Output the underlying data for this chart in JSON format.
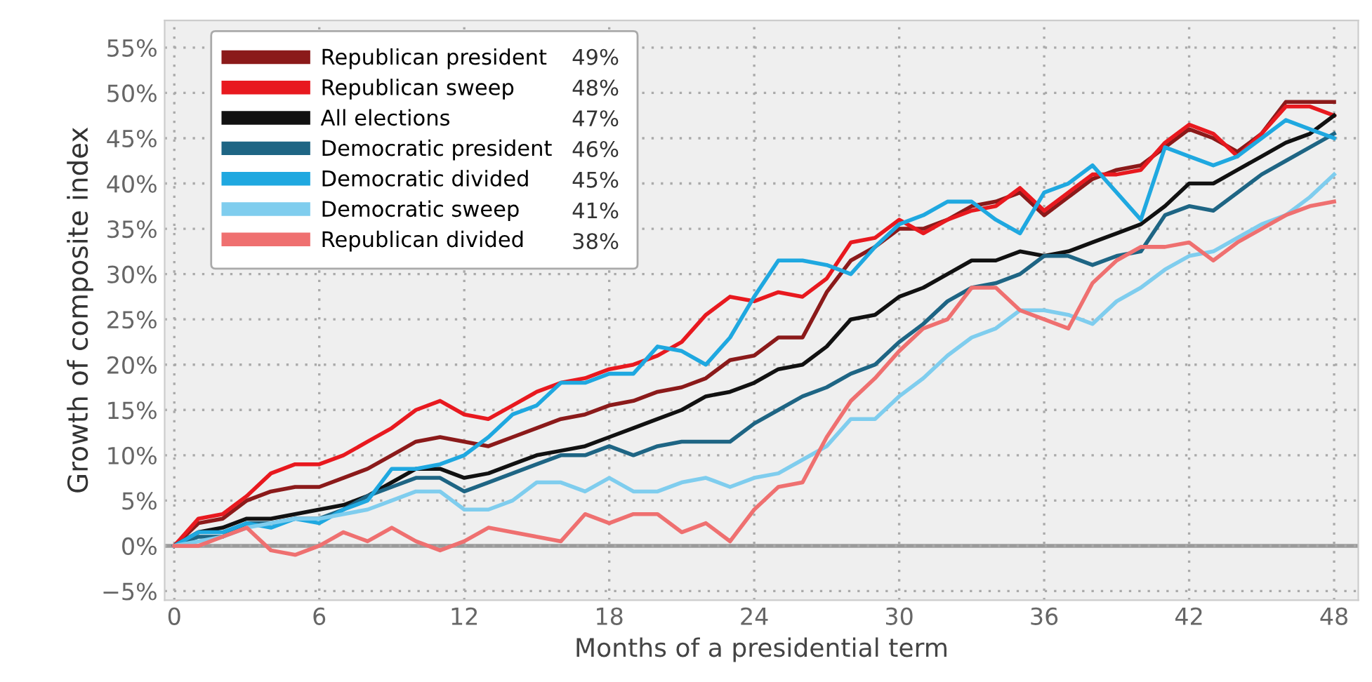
{
  "chart_data": {
    "type": "line",
    "xlabel": "Months of a presidential term",
    "ylabel": "Growth of composite index",
    "x": [
      0,
      1,
      2,
      3,
      4,
      5,
      6,
      7,
      8,
      9,
      10,
      11,
      12,
      13,
      14,
      15,
      16,
      17,
      18,
      19,
      20,
      21,
      22,
      23,
      24,
      25,
      26,
      27,
      28,
      29,
      30,
      31,
      32,
      33,
      34,
      35,
      36,
      37,
      38,
      39,
      40,
      41,
      42,
      43,
      44,
      45,
      46,
      47,
      48
    ],
    "xlim": [
      -0.4,
      49
    ],
    "xticks": [
      0,
      6,
      12,
      18,
      24,
      30,
      36,
      42,
      48
    ],
    "ylim": [
      -6,
      58
    ],
    "yticks": [
      {
        "value": -5,
        "label": "−5%"
      },
      {
        "value": 0,
        "label": "0%"
      },
      {
        "value": 5,
        "label": "5%"
      },
      {
        "value": 10,
        "label": "10%"
      },
      {
        "value": 15,
        "label": "15%"
      },
      {
        "value": 20,
        "label": "20%"
      },
      {
        "value": 25,
        "label": "25%"
      },
      {
        "value": 30,
        "label": "30%"
      },
      {
        "value": 35,
        "label": "35%"
      },
      {
        "value": 40,
        "label": "40%"
      },
      {
        "value": 45,
        "label": "45%"
      },
      {
        "value": 50,
        "label": "50%"
      },
      {
        "value": 55,
        "label": "55%"
      }
    ],
    "grid": true,
    "legend": "top left",
    "marker": "none",
    "line_style": "solid",
    "ref_lines": [
      {
        "axis": "y",
        "value": 0,
        "color": "#9a9a9a"
      }
    ],
    "annotations": [
      "49%",
      "48%",
      "47%",
      "46%",
      "45%",
      "41%",
      "38%"
    ],
    "series": [
      {
        "name": "Republican president",
        "color": "#8b1a1a",
        "values": [
          0,
          2.5,
          3,
          5,
          6,
          6.5,
          6.5,
          7.5,
          8.5,
          10,
          11.5,
          12,
          11.5,
          11,
          12,
          13,
          14,
          14.5,
          15.5,
          16,
          17,
          17.5,
          18.5,
          20.5,
          21,
          23,
          23,
          28,
          31.5,
          33,
          35,
          35,
          36,
          37.5,
          38,
          39,
          36.5,
          38.5,
          40.5,
          41.5,
          42,
          44,
          46,
          45,
          43.5,
          45.5,
          49,
          49,
          49
        ]
      },
      {
        "name": "Republican sweep",
        "color": "#e8191f",
        "values": [
          0,
          3,
          3.5,
          5.5,
          8,
          9,
          9,
          10,
          11.5,
          13,
          15,
          16,
          14.5,
          14,
          15.5,
          17,
          18,
          18.5,
          19.5,
          20,
          21,
          22.5,
          25.5,
          27.5,
          27,
          28,
          27.5,
          29.5,
          33.5,
          34,
          36,
          34.5,
          36,
          37,
          37.5,
          39.5,
          37,
          39,
          41,
          41,
          41.5,
          44.5,
          46.5,
          45.5,
          43,
          45.5,
          48.5,
          48.5,
          47.5
        ]
      },
      {
        "name": "All elections",
        "color": "#111111",
        "values": [
          0,
          1.5,
          2,
          3,
          3,
          3.5,
          4,
          4.5,
          5.5,
          7,
          8.5,
          8.5,
          7.5,
          8,
          9,
          10,
          10.5,
          11,
          12,
          13,
          14,
          15,
          16.5,
          17,
          18,
          19.5,
          20,
          22,
          25,
          25.5,
          27.5,
          28.5,
          30,
          31.5,
          31.5,
          32.5,
          32,
          32.5,
          33.5,
          34.5,
          35.5,
          37.5,
          40,
          40,
          41.5,
          43,
          44.5,
          45.5,
          47.5
        ]
      },
      {
        "name": "Democratic president",
        "color": "#1e6584",
        "values": [
          0,
          1,
          1,
          2.5,
          2.5,
          3,
          3,
          4,
          5.5,
          6.5,
          7.5,
          7.5,
          6,
          7,
          8,
          9,
          10,
          10,
          11,
          10,
          11,
          11.5,
          11.5,
          11.5,
          13.5,
          15,
          16.5,
          17.5,
          19,
          20,
          22.5,
          24.5,
          27,
          28.5,
          29,
          30,
          32,
          32,
          31,
          32,
          32.5,
          36.5,
          37.5,
          37,
          39,
          41,
          42.5,
          44,
          45.5
        ]
      },
      {
        "name": "Democratic divided",
        "color": "#1fa8e0",
        "values": [
          0,
          1.5,
          1.5,
          2.5,
          2,
          3,
          2.5,
          4,
          5,
          8.5,
          8.5,
          9,
          10,
          12,
          14.5,
          15.5,
          18,
          18,
          19,
          19,
          22,
          21.5,
          20,
          23,
          27.5,
          31.5,
          31.5,
          31,
          30,
          33,
          35.5,
          36.5,
          38,
          38,
          36,
          34.5,
          39,
          40,
          42,
          39,
          36,
          44,
          43,
          42,
          43,
          45,
          47,
          46,
          45
        ]
      },
      {
        "name": "Democratic sweep",
        "color": "#7fcdee",
        "values": [
          0,
          0.5,
          1,
          2,
          2.5,
          3,
          3,
          3.5,
          4,
          5,
          6,
          6,
          4,
          4,
          5,
          7,
          7,
          6,
          7.5,
          6,
          6,
          7,
          7.5,
          6.5,
          7.5,
          8,
          9.5,
          11,
          14,
          14,
          16.5,
          18.5,
          21,
          23,
          24,
          26,
          26,
          25.5,
          24.5,
          27,
          28.5,
          30.5,
          32,
          32.5,
          34,
          35.5,
          36.5,
          38.5,
          41
        ]
      },
      {
        "name": "Republican divided",
        "color": "#ef7070",
        "values": [
          0,
          0,
          1,
          2,
          -0.5,
          -1,
          0,
          1.5,
          0.5,
          2,
          0.5,
          -0.5,
          0.5,
          2,
          1.5,
          1,
          0.5,
          3.5,
          2.5,
          3.5,
          3.5,
          1.5,
          2.5,
          0.5,
          4,
          6.5,
          7,
          12,
          16,
          18.5,
          21.5,
          24,
          25,
          28.5,
          28.5,
          26,
          25,
          24,
          29,
          31.5,
          33,
          33,
          33.5,
          31.5,
          33.5,
          35,
          36.5,
          37.5,
          38
        ]
      }
    ]
  }
}
